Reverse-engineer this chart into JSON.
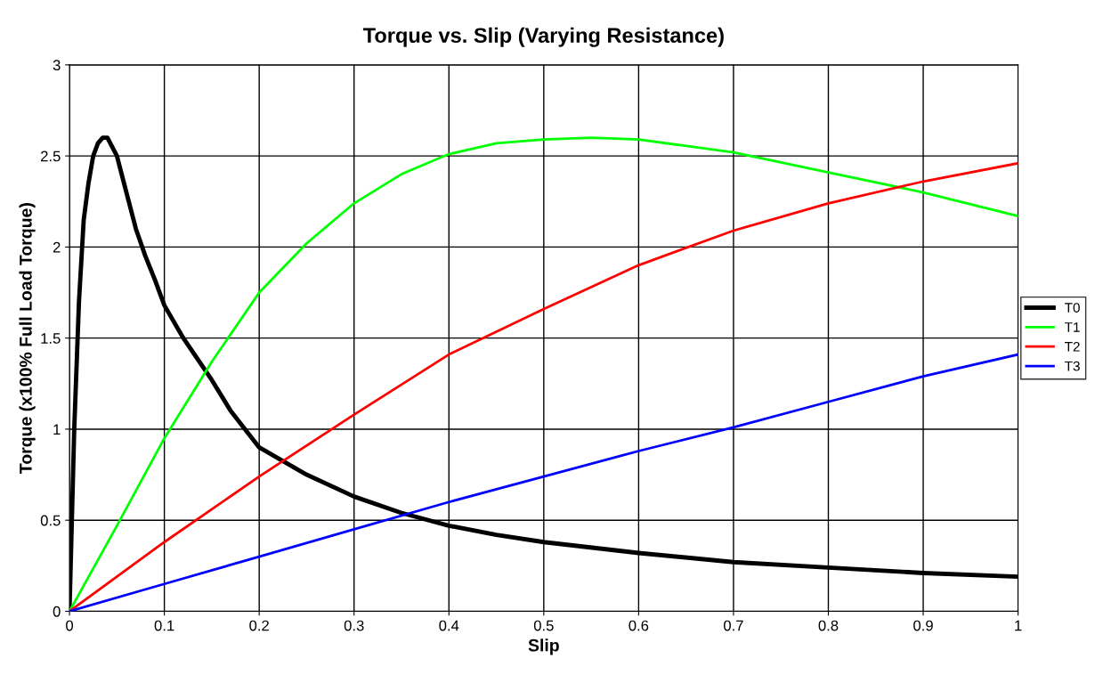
{
  "chart_data": {
    "type": "line",
    "title": "Torque vs. Slip (Varying Resistance)",
    "xlabel": "Slip",
    "ylabel": "Torque (x100% Full Load Torque)",
    "xlim": [
      0,
      1
    ],
    "xticks": [
      0,
      0.1,
      0.2,
      0.3,
      0.4,
      0.5,
      0.6,
      0.7,
      0.8,
      0.9,
      1
    ],
    "ylim": [
      0,
      3
    ],
    "yticks": [
      0,
      0.5,
      1,
      1.5,
      2,
      2.5,
      3
    ],
    "grid": true,
    "legend": "right",
    "marker": "none",
    "line_style": "solid",
    "series": [
      {
        "name": "T0",
        "color": "#000000",
        "x": [
          0,
          0.005,
          0.01,
          0.015,
          0.02,
          0.025,
          0.03,
          0.035,
          0.04,
          0.05,
          0.06,
          0.07,
          0.08,
          0.09,
          0.1,
          0.12,
          0.15,
          0.17,
          0.2,
          0.25,
          0.3,
          0.35,
          0.4,
          0.45,
          0.5,
          0.6,
          0.7,
          0.8,
          0.9,
          1.0
        ],
        "values": [
          0,
          1.0,
          1.7,
          2.15,
          2.35,
          2.5,
          2.57,
          2.6,
          2.6,
          2.5,
          2.3,
          2.1,
          1.95,
          1.82,
          1.68,
          1.5,
          1.27,
          1.1,
          0.9,
          0.75,
          0.63,
          0.54,
          0.47,
          0.42,
          0.38,
          0.32,
          0.27,
          0.24,
          0.21,
          0.19
        ]
      },
      {
        "name": "T1",
        "color": "#00ff00",
        "x": [
          0,
          0.05,
          0.1,
          0.15,
          0.2,
          0.25,
          0.3,
          0.35,
          0.4,
          0.45,
          0.5,
          0.55,
          0.6,
          0.7,
          0.8,
          0.9,
          1.0
        ],
        "values": [
          0,
          0.47,
          0.95,
          1.37,
          1.75,
          2.02,
          2.24,
          2.4,
          2.51,
          2.57,
          2.59,
          2.6,
          2.59,
          2.52,
          2.41,
          2.3,
          2.17
        ]
      },
      {
        "name": "T2",
        "color": "#ff0000",
        "x": [
          0,
          0.1,
          0.2,
          0.3,
          0.4,
          0.5,
          0.6,
          0.7,
          0.8,
          0.9,
          1.0
        ],
        "values": [
          0,
          0.38,
          0.74,
          1.08,
          1.41,
          1.66,
          1.9,
          2.09,
          2.24,
          2.36,
          2.46
        ]
      },
      {
        "name": "T3",
        "color": "#0000ff",
        "x": [
          0,
          0.1,
          0.2,
          0.3,
          0.4,
          0.5,
          0.6,
          0.7,
          0.8,
          0.9,
          1.0
        ],
        "values": [
          0,
          0.15,
          0.3,
          0.45,
          0.6,
          0.74,
          0.88,
          1.01,
          1.15,
          1.29,
          1.41
        ]
      }
    ]
  }
}
